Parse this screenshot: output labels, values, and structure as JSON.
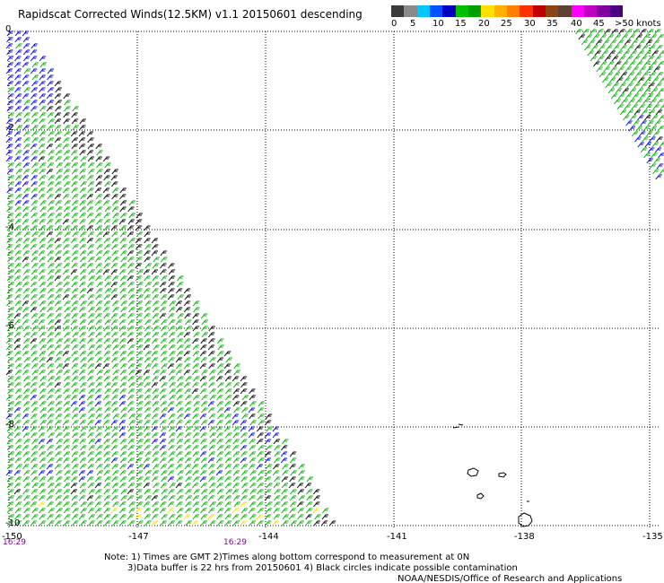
{
  "title": "Rapidscat Corrected Winds(12.5KM) v1.1 20150601 descending",
  "legend": {
    "colors": [
      "#3a3a3a",
      "#8a8a8a",
      "#00c8ff",
      "#0050ff",
      "#0000c0",
      "#00c000",
      "#00a000",
      "#ffe000",
      "#ffb000",
      "#ff8000",
      "#ff3000",
      "#c00000",
      "#8b4513",
      "#604030",
      "#ff00ff",
      "#c000c0",
      "#8000a0",
      "#4b0082"
    ],
    "labels": [
      "0",
      "5",
      "10",
      "15",
      "20",
      "25",
      "30",
      "35",
      "40",
      "45",
      ">50 knots"
    ]
  },
  "axes": {
    "x_ticks": [
      "-150",
      "-147",
      "-144",
      "-141",
      "-138",
      "-135"
    ],
    "y_ticks": [
      "0",
      "-2",
      "-4",
      "-6",
      "-8",
      "-10"
    ]
  },
  "times": [
    "16:29",
    "16:29"
  ],
  "notes": {
    "line1": "Note: 1) Times are GMT 2)Times along bottom correspond to measurement at 0N",
    "line2": "3)Data buffer is 22 hrs from 20150601 4) Black circles indicate possible contamination",
    "line3": "NOAA/NESDIS/Office of Research and Applications"
  },
  "wind_colors": {
    "green": "#00b000",
    "blue": "#0000e0",
    "black": "#000000",
    "yellow": "#ffe000"
  }
}
